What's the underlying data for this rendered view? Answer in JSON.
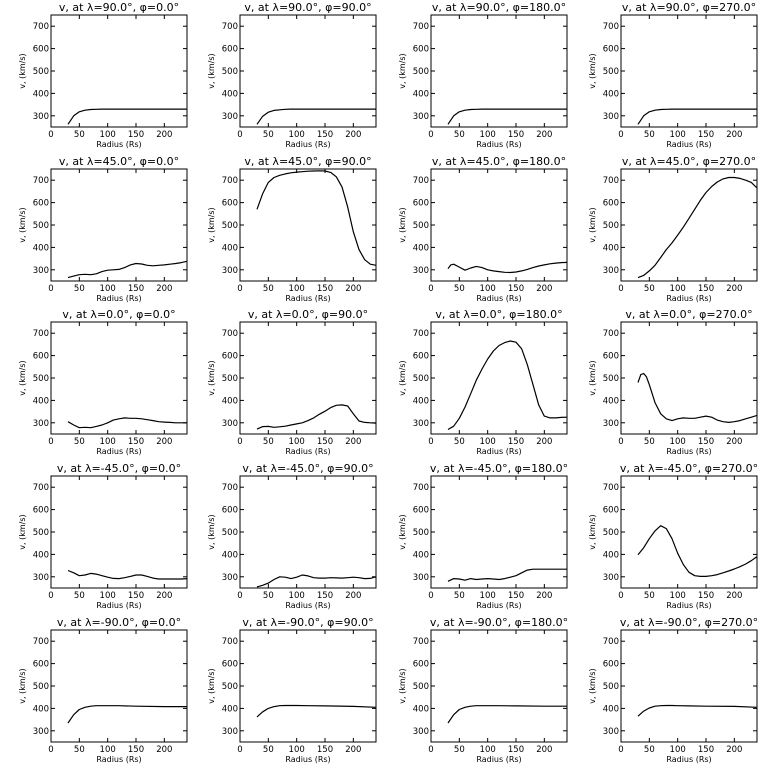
{
  "figure": {
    "rows": 5,
    "cols": 4,
    "line_color": "#000000",
    "background": "#ffffff"
  },
  "chart_data": [
    {
      "type": "line",
      "title": "v, at λ=90.0°, φ=0.0°",
      "xlabel": "Radius (Rs)",
      "ylabel": "v, (km/s)",
      "xlim": [
        0,
        240
      ],
      "ylim": [
        250,
        750
      ],
      "xticks": [
        0,
        50,
        100,
        150,
        200
      ],
      "yticks": [
        300,
        400,
        500,
        600,
        700
      ],
      "x": [
        30,
        40,
        50,
        60,
        70,
        80,
        90,
        100,
        120,
        150,
        200,
        240
      ],
      "y": [
        262,
        300,
        318,
        325,
        328,
        329,
        330,
        330,
        330,
        330,
        330,
        330
      ]
    },
    {
      "type": "line",
      "title": "v, at λ=90.0°, φ=90.0°",
      "xlabel": "Radius (Rs)",
      "ylabel": "v, (km/s)",
      "xlim": [
        0,
        240
      ],
      "ylim": [
        250,
        750
      ],
      "xticks": [
        0,
        50,
        100,
        150,
        200
      ],
      "yticks": [
        300,
        400,
        500,
        600,
        700
      ],
      "x": [
        30,
        40,
        50,
        60,
        70,
        80,
        90,
        100,
        120,
        150,
        200,
        240
      ],
      "y": [
        262,
        298,
        316,
        324,
        327,
        329,
        330,
        330,
        330,
        330,
        330,
        330
      ]
    },
    {
      "type": "line",
      "title": "v, at λ=90.0°, φ=180.0°",
      "xlabel": "Radius (Rs)",
      "ylabel": "v, (km/s)",
      "xlim": [
        0,
        240
      ],
      "ylim": [
        250,
        750
      ],
      "xticks": [
        0,
        50,
        100,
        150,
        200
      ],
      "yticks": [
        300,
        400,
        500,
        600,
        700
      ],
      "x": [
        30,
        40,
        50,
        60,
        70,
        80,
        90,
        100,
        120,
        150,
        200,
        240
      ],
      "y": [
        262,
        300,
        318,
        325,
        328,
        329,
        330,
        330,
        330,
        330,
        330,
        330
      ]
    },
    {
      "type": "line",
      "title": "v, at λ=90.0°, φ=270.0°",
      "xlabel": "Radius (Rs)",
      "ylabel": "v, (km/s)",
      "xlim": [
        0,
        240
      ],
      "ylim": [
        250,
        750
      ],
      "xticks": [
        0,
        50,
        100,
        150,
        200
      ],
      "yticks": [
        300,
        400,
        500,
        600,
        700
      ],
      "x": [
        30,
        40,
        50,
        60,
        70,
        80,
        90,
        100,
        120,
        150,
        200,
        240
      ],
      "y": [
        262,
        300,
        318,
        325,
        328,
        329,
        330,
        330,
        330,
        330,
        330,
        330
      ]
    },
    {
      "type": "line",
      "title": "v, at λ=45.0°, φ=0.0°",
      "xlabel": "Radius (Rs)",
      "ylabel": "v, (km/s)",
      "xlim": [
        0,
        240
      ],
      "ylim": [
        250,
        750
      ],
      "xticks": [
        0,
        50,
        100,
        150,
        200
      ],
      "yticks": [
        300,
        400,
        500,
        600,
        700
      ],
      "x": [
        30,
        40,
        50,
        60,
        70,
        80,
        90,
        100,
        110,
        120,
        130,
        140,
        150,
        160,
        170,
        180,
        190,
        200,
        210,
        220,
        230,
        240
      ],
      "y": [
        265,
        272,
        278,
        280,
        278,
        282,
        292,
        298,
        300,
        302,
        310,
        322,
        328,
        326,
        320,
        318,
        320,
        322,
        325,
        328,
        332,
        338
      ]
    },
    {
      "type": "line",
      "title": "v, at λ=45.0°, φ=90.0°",
      "xlabel": "Radius (Rs)",
      "ylabel": "v, (km/s)",
      "xlim": [
        0,
        240
      ],
      "ylim": [
        250,
        750
      ],
      "xticks": [
        0,
        50,
        100,
        150,
        200
      ],
      "yticks": [
        300,
        400,
        500,
        600,
        700
      ],
      "x": [
        30,
        40,
        50,
        60,
        70,
        80,
        90,
        100,
        110,
        120,
        130,
        140,
        150,
        160,
        170,
        180,
        190,
        200,
        210,
        220,
        230,
        240
      ],
      "y": [
        570,
        640,
        690,
        712,
        722,
        728,
        733,
        736,
        738,
        740,
        741,
        742,
        741,
        735,
        715,
        670,
        580,
        470,
        390,
        345,
        325,
        320
      ]
    },
    {
      "type": "line",
      "title": "v, at λ=45.0°, φ=180.0°",
      "xlabel": "Radius (Rs)",
      "ylabel": "v, (km/s)",
      "xlim": [
        0,
        240
      ],
      "ylim": [
        250,
        750
      ],
      "xticks": [
        0,
        50,
        100,
        150,
        200
      ],
      "yticks": [
        300,
        400,
        500,
        600,
        700
      ],
      "x": [
        30,
        35,
        40,
        50,
        60,
        70,
        80,
        90,
        100,
        110,
        120,
        130,
        140,
        150,
        160,
        170,
        180,
        190,
        200,
        210,
        220,
        230,
        240
      ],
      "y": [
        305,
        322,
        325,
        312,
        298,
        308,
        315,
        310,
        300,
        295,
        292,
        289,
        288,
        290,
        295,
        302,
        310,
        317,
        322,
        327,
        330,
        332,
        333
      ]
    },
    {
      "type": "line",
      "title": "v, at λ=45.0°, φ=270.0°",
      "xlabel": "Radius (Rs)",
      "ylabel": "v, (km/s)",
      "xlim": [
        0,
        240
      ],
      "ylim": [
        250,
        750
      ],
      "xticks": [
        0,
        50,
        100,
        150,
        200
      ],
      "yticks": [
        300,
        400,
        500,
        600,
        700
      ],
      "x": [
        30,
        40,
        50,
        60,
        70,
        80,
        90,
        100,
        110,
        120,
        130,
        140,
        150,
        160,
        170,
        180,
        190,
        200,
        210,
        220,
        230,
        240
      ],
      "y": [
        265,
        275,
        295,
        320,
        355,
        390,
        420,
        455,
        490,
        530,
        570,
        610,
        645,
        672,
        692,
        706,
        712,
        712,
        708,
        700,
        690,
        665
      ]
    },
    {
      "type": "line",
      "title": "v, at λ=0.0°, φ=0.0°",
      "xlabel": "Radius (Rs)",
      "ylabel": "v, (km/s)",
      "xlim": [
        0,
        240
      ],
      "ylim": [
        250,
        750
      ],
      "xticks": [
        0,
        50,
        100,
        150,
        200
      ],
      "yticks": [
        300,
        400,
        500,
        600,
        700
      ],
      "x": [
        30,
        40,
        50,
        60,
        70,
        80,
        90,
        100,
        110,
        120,
        130,
        140,
        150,
        160,
        170,
        180,
        190,
        200,
        210,
        220,
        230,
        240
      ],
      "y": [
        305,
        290,
        278,
        280,
        278,
        284,
        290,
        300,
        312,
        318,
        322,
        320,
        320,
        318,
        314,
        310,
        305,
        303,
        302,
        300,
        300,
        300
      ]
    },
    {
      "type": "line",
      "title": "v, at λ=0.0°, φ=90.0°",
      "xlabel": "Radius (Rs)",
      "ylabel": "v, (km/s)",
      "xlim": [
        0,
        240
      ],
      "ylim": [
        250,
        750
      ],
      "xticks": [
        0,
        50,
        100,
        150,
        200
      ],
      "yticks": [
        300,
        400,
        500,
        600,
        700
      ],
      "x": [
        30,
        40,
        50,
        60,
        70,
        80,
        90,
        100,
        110,
        120,
        130,
        140,
        150,
        160,
        170,
        180,
        190,
        200,
        210,
        220,
        230,
        240
      ],
      "y": [
        272,
        283,
        284,
        280,
        282,
        285,
        290,
        295,
        300,
        310,
        322,
        338,
        352,
        368,
        378,
        380,
        375,
        340,
        308,
        302,
        300,
        298
      ]
    },
    {
      "type": "line",
      "title": "v, at λ=0.0°, φ=180.0°",
      "xlabel": "Radius (Rs)",
      "ylabel": "v, (km/s)",
      "xlim": [
        0,
        240
      ],
      "ylim": [
        250,
        750
      ],
      "xticks": [
        0,
        50,
        100,
        150,
        200
      ],
      "yticks": [
        300,
        400,
        500,
        600,
        700
      ],
      "x": [
        30,
        40,
        50,
        60,
        70,
        80,
        90,
        100,
        110,
        120,
        130,
        140,
        150,
        160,
        170,
        180,
        190,
        200,
        210,
        220,
        230,
        240
      ],
      "y": [
        270,
        285,
        320,
        370,
        430,
        490,
        540,
        585,
        620,
        645,
        658,
        665,
        660,
        630,
        560,
        470,
        380,
        330,
        322,
        322,
        324,
        325
      ]
    },
    {
      "type": "line",
      "title": "v, at λ=0.0°, φ=270.0°",
      "xlabel": "Radius (Rs)",
      "ylabel": "v, (km/s)",
      "xlim": [
        0,
        240
      ],
      "ylim": [
        250,
        750
      ],
      "xticks": [
        0,
        50,
        100,
        150,
        200
      ],
      "yticks": [
        300,
        400,
        500,
        600,
        700
      ],
      "x": [
        30,
        35,
        40,
        45,
        50,
        60,
        70,
        80,
        90,
        100,
        110,
        120,
        130,
        140,
        150,
        160,
        170,
        180,
        190,
        200,
        210,
        220,
        230,
        240
      ],
      "y": [
        480,
        515,
        520,
        505,
        470,
        390,
        340,
        318,
        310,
        318,
        322,
        320,
        320,
        325,
        330,
        325,
        312,
        305,
        302,
        305,
        310,
        318,
        325,
        333
      ]
    },
    {
      "type": "line",
      "title": "v, at λ=-45.0°, φ=0.0°",
      "xlabel": "Radius (Rs)",
      "ylabel": "v, (km/s)",
      "xlim": [
        0,
        240
      ],
      "ylim": [
        250,
        750
      ],
      "xticks": [
        0,
        50,
        100,
        150,
        200
      ],
      "yticks": [
        300,
        400,
        500,
        600,
        700
      ],
      "x": [
        30,
        40,
        50,
        60,
        70,
        80,
        90,
        100,
        110,
        120,
        130,
        140,
        150,
        160,
        170,
        180,
        190,
        200,
        210,
        220,
        230,
        240
      ],
      "y": [
        328,
        318,
        305,
        308,
        315,
        312,
        305,
        298,
        293,
        292,
        296,
        302,
        308,
        308,
        302,
        294,
        290,
        290,
        290,
        290,
        290,
        292
      ]
    },
    {
      "type": "line",
      "title": "v, at λ=-45.0°, φ=90.0°",
      "xlabel": "Radius (Rs)",
      "ylabel": "v, (km/s)",
      "xlim": [
        0,
        240
      ],
      "ylim": [
        250,
        750
      ],
      "xticks": [
        0,
        50,
        100,
        150,
        200
      ],
      "yticks": [
        300,
        400,
        500,
        600,
        700
      ],
      "x": [
        30,
        40,
        50,
        60,
        70,
        80,
        90,
        100,
        110,
        120,
        130,
        140,
        150,
        160,
        170,
        180,
        190,
        200,
        210,
        220,
        230,
        240
      ],
      "y": [
        255,
        262,
        272,
        288,
        300,
        298,
        292,
        298,
        308,
        304,
        296,
        294,
        294,
        296,
        295,
        294,
        296,
        298,
        296,
        292,
        293,
        300
      ]
    },
    {
      "type": "line",
      "title": "v, at λ=-45.0°, φ=180.0°",
      "xlabel": "Radius (Rs)",
      "ylabel": "v, (km/s)",
      "xlim": [
        0,
        240
      ],
      "ylim": [
        250,
        750
      ],
      "xticks": [
        0,
        50,
        100,
        150,
        200
      ],
      "yticks": [
        300,
        400,
        500,
        600,
        700
      ],
      "x": [
        30,
        40,
        50,
        60,
        70,
        80,
        90,
        100,
        110,
        120,
        130,
        140,
        150,
        160,
        170,
        180,
        190,
        200,
        210,
        220,
        230,
        240
      ],
      "y": [
        280,
        292,
        290,
        285,
        292,
        288,
        290,
        292,
        290,
        288,
        292,
        298,
        305,
        318,
        330,
        334,
        334,
        334,
        334,
        334,
        334,
        334
      ]
    },
    {
      "type": "line",
      "title": "v, at λ=-45.0°, φ=270.0°",
      "xlabel": "Radius (Rs)",
      "ylabel": "v, (km/s)",
      "xlim": [
        0,
        240
      ],
      "ylim": [
        250,
        750
      ],
      "xticks": [
        0,
        50,
        100,
        150,
        200
      ],
      "yticks": [
        300,
        400,
        500,
        600,
        700
      ],
      "x": [
        30,
        40,
        50,
        60,
        70,
        80,
        90,
        100,
        110,
        120,
        130,
        140,
        150,
        160,
        170,
        180,
        190,
        200,
        210,
        220,
        230,
        240
      ],
      "y": [
        398,
        430,
        470,
        505,
        528,
        515,
        470,
        405,
        355,
        320,
        305,
        302,
        302,
        305,
        310,
        318,
        326,
        335,
        345,
        357,
        372,
        390
      ]
    },
    {
      "type": "line",
      "title": "v, at λ=-90.0°, φ=0.0°",
      "xlabel": "Radius (Rs)",
      "ylabel": "v, (km/s)",
      "xlim": [
        0,
        240
      ],
      "ylim": [
        250,
        750
      ],
      "xticks": [
        0,
        50,
        100,
        150,
        200
      ],
      "yticks": [
        300,
        400,
        500,
        600,
        700
      ],
      "x": [
        30,
        40,
        50,
        60,
        70,
        80,
        90,
        100,
        120,
        150,
        200,
        240
      ],
      "y": [
        335,
        372,
        395,
        405,
        410,
        412,
        412,
        412,
        412,
        410,
        408,
        408
      ]
    },
    {
      "type": "line",
      "title": "v, at λ=-90.0°, φ=90.0°",
      "xlabel": "Radius (Rs)",
      "ylabel": "v, (km/s)",
      "xlim": [
        0,
        240
      ],
      "ylim": [
        250,
        750
      ],
      "xticks": [
        0,
        50,
        100,
        150,
        200
      ],
      "yticks": [
        300,
        400,
        500,
        600,
        700
      ],
      "x": [
        30,
        40,
        50,
        60,
        70,
        80,
        90,
        100,
        120,
        150,
        200,
        240
      ],
      "y": [
        362,
        385,
        400,
        408,
        412,
        413,
        413,
        413,
        412,
        411,
        409,
        405
      ]
    },
    {
      "type": "line",
      "title": "v, at λ=-90.0°, φ=180.0°",
      "xlabel": "Radius (Rs)",
      "ylabel": "v, (km/s)",
      "xlim": [
        0,
        240
      ],
      "ylim": [
        250,
        750
      ],
      "xticks": [
        0,
        50,
        100,
        150,
        200
      ],
      "yticks": [
        300,
        400,
        500,
        600,
        700
      ],
      "x": [
        30,
        40,
        50,
        60,
        70,
        80,
        90,
        100,
        120,
        150,
        200,
        240
      ],
      "y": [
        335,
        372,
        395,
        405,
        410,
        412,
        412,
        412,
        412,
        411,
        410,
        410
      ]
    },
    {
      "type": "line",
      "title": "v, at λ=-90.0°, φ=270.0°",
      "xlabel": "Radius (Rs)",
      "ylabel": "v, (km/s)",
      "xlim": [
        0,
        240
      ],
      "ylim": [
        250,
        750
      ],
      "xticks": [
        0,
        50,
        100,
        150,
        200
      ],
      "yticks": [
        300,
        400,
        500,
        600,
        700
      ],
      "x": [
        30,
        40,
        50,
        60,
        70,
        80,
        90,
        100,
        120,
        150,
        200,
        240
      ],
      "y": [
        365,
        388,
        402,
        410,
        412,
        413,
        413,
        412,
        411,
        410,
        409,
        405
      ]
    }
  ]
}
